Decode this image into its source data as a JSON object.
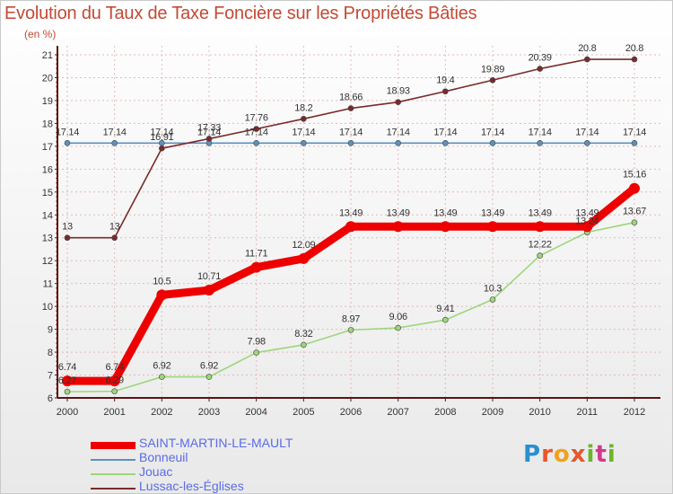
{
  "title": "Evolution du Taux de Taxe Foncière sur les Propriétés Bâties",
  "unit_label": "(en %)",
  "logo_text": "Proxiti",
  "colors": {
    "title": "#c24a35",
    "legend_text": "#5b6be6",
    "grid": "#e3b9b9",
    "axis": "#5a1414"
  },
  "chart_data": {
    "type": "line",
    "title": "Evolution du Taux de Taxe Foncière sur les Propriétés Bâties",
    "ylabel": "(en %)",
    "xlabel": "",
    "ylim": [
      6,
      21
    ],
    "yticks": [
      6,
      7,
      8,
      9,
      10,
      11,
      12,
      13,
      14,
      15,
      16,
      17,
      18,
      19,
      20,
      21
    ],
    "categories": [
      "2000",
      "2001",
      "2002",
      "2003",
      "2004",
      "2005",
      "2006",
      "2007",
      "2008",
      "2009",
      "2010",
      "2011",
      "2012"
    ],
    "series": [
      {
        "name": "SAINT-MARTIN-LE-MAULT",
        "color": "#ee0000",
        "style": "thick",
        "values": [
          6.74,
          6.74,
          10.5,
          10.71,
          11.71,
          12.09,
          13.49,
          13.49,
          13.49,
          13.49,
          13.49,
          13.49,
          15.16
        ],
        "labels": [
          "6.74",
          "6.74",
          "10.5",
          "10.71",
          "11.71",
          "12.09",
          "13.49",
          "13.49",
          "13.49",
          "13.49",
          "13.49",
          "13.49",
          "15.16"
        ]
      },
      {
        "name": "Bonneuil",
        "color": "#5b91bf",
        "style": "thin",
        "values": [
          17.14,
          17.14,
          17.14,
          17.14,
          17.14,
          17.14,
          17.14,
          17.14,
          17.14,
          17.14,
          17.14,
          17.14,
          17.14
        ],
        "labels": [
          "17.14",
          "17.14",
          "17.14",
          "17.14",
          "17.14",
          "17.14",
          "17.14",
          "17.14",
          "17.14",
          "17.14",
          "17.14",
          "17.14",
          "17.14"
        ]
      },
      {
        "name": "Jouac",
        "color": "#9dd67c",
        "style": "thin",
        "values": [
          6.27,
          6.29,
          6.92,
          6.92,
          7.98,
          8.32,
          8.97,
          9.06,
          9.41,
          10.3,
          12.22,
          13.24,
          13.67
        ],
        "labels": [
          "6.27",
          "6.29",
          "6.92",
          "6.92",
          "7.98",
          "8.32",
          "8.97",
          "9.06",
          "9.41",
          "10.3",
          "12.22",
          "13.24",
          "13.67"
        ]
      },
      {
        "name": "Lussac-les-Églises",
        "color": "#7a2a2a",
        "style": "thin",
        "values": [
          13,
          13,
          16.91,
          17.33,
          17.76,
          18.2,
          18.66,
          18.93,
          19.4,
          19.89,
          20.39,
          20.8,
          20.8
        ],
        "labels": [
          "13",
          "13",
          "16.91",
          "17.33",
          "17.76",
          "18.2",
          "18.66",
          "18.93",
          "19.4",
          "19.89",
          "20.39",
          "20.8",
          "20.8"
        ]
      }
    ]
  }
}
